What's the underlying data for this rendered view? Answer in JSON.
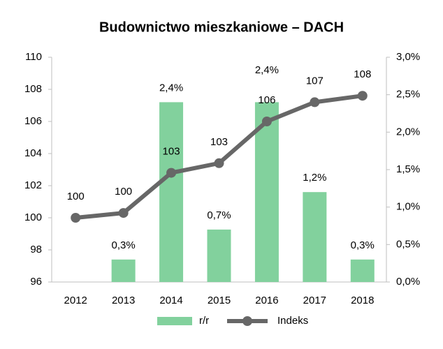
{
  "chart_data": {
    "type": "bar-line",
    "title": "Budownictwo mieszkaniowe – DACH",
    "categories": [
      "2012",
      "2013",
      "2014",
      "2015",
      "2016",
      "2017",
      "2018"
    ],
    "series": [
      {
        "name": "r/r",
        "type": "bar",
        "axis": "y2",
        "color": "#82d19d",
        "values": [
          null,
          0.3,
          2.4,
          0.7,
          2.4,
          1.2,
          0.3
        ],
        "value_labels": [
          null,
          "0,3%",
          "2,4%",
          "0,7%",
          "2,4%",
          "1,2%",
          "0,3%"
        ]
      },
      {
        "name": "Indeks",
        "type": "line",
        "axis": "y",
        "color": "#676767",
        "values": [
          100,
          100.3,
          102.8,
          103.4,
          106,
          107.2,
          107.6
        ],
        "value_labels": [
          "100",
          "100",
          "103",
          "103",
          "106",
          "107",
          "108"
        ]
      }
    ],
    "ylim": [
      96,
      110
    ],
    "yticks": [
      96,
      98,
      100,
      102,
      104,
      106,
      108,
      110
    ],
    "y2lim": [
      0,
      3
    ],
    "y2ticks": [
      {
        "value": 0,
        "label": "0,0%"
      },
      {
        "value": 0.5,
        "label": "0,5%"
      },
      {
        "value": 1,
        "label": "1,0%"
      },
      {
        "value": 1.5,
        "label": "1,5%"
      },
      {
        "value": 2,
        "label": "2,0%"
      },
      {
        "value": 2.5,
        "label": "2,5%"
      },
      {
        "value": 3,
        "label": "3,0%"
      }
    ],
    "legend": "bottom"
  }
}
